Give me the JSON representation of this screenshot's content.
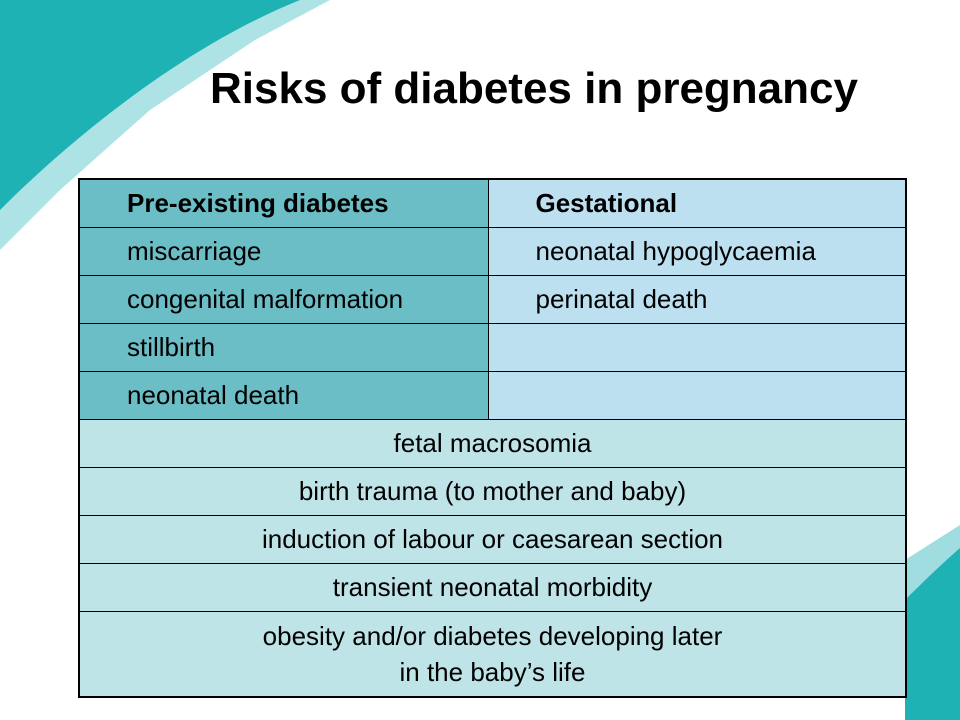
{
  "slide": {
    "title": "Risks of diabetes in pregnancy",
    "accent_color": "#1fb2b5",
    "accent_light_color": "#9fdde0"
  },
  "table": {
    "headers": [
      "Pre-existing diabetes",
      "Gestational"
    ],
    "pre_existing": [
      "miscarriage",
      "congenital malformation",
      "stillbirth",
      "neonatal death"
    ],
    "gestational": [
      "neonatal hypoglycaemia",
      "perinatal death",
      "",
      ""
    ],
    "shared": [
      "fetal macrosomia",
      "birth trauma (to mother and baby)",
      "induction of labour or caesarean section",
      "transient neonatal morbidity"
    ],
    "last_row_lines": [
      "obesity and/or diabetes developing later",
      "in the baby’s life"
    ],
    "colors": {
      "pre_existing_bg": "#6bbdc6",
      "gestational_bg": "#bde0f0",
      "shared_bg": "#bfe4e8"
    }
  }
}
